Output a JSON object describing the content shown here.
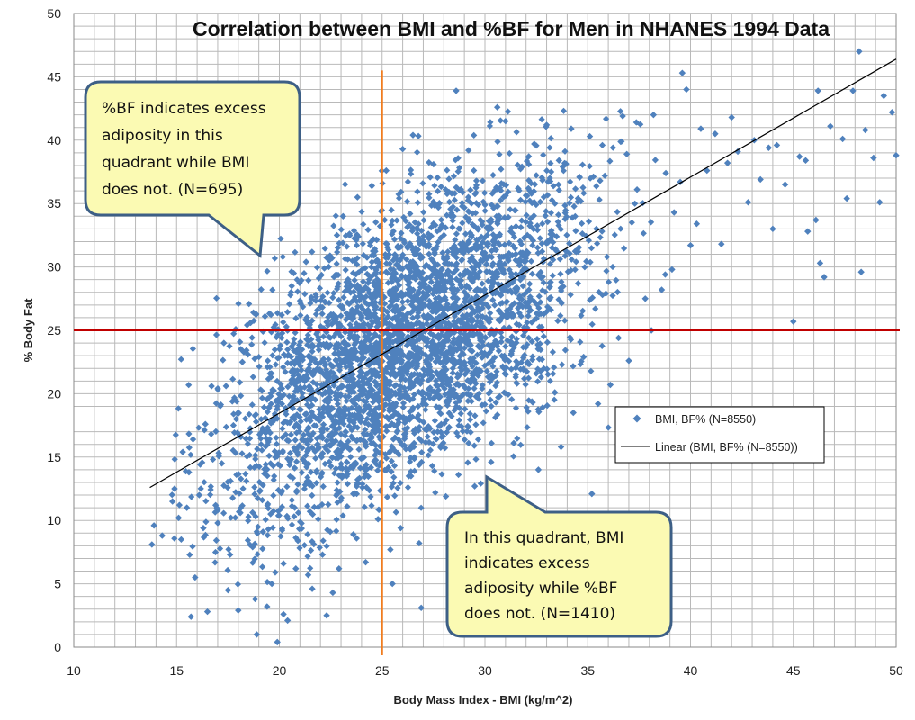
{
  "chart_data": {
    "type": "scatter",
    "title": "Correlation between BMI and %BF for Men in NHANES 1994 Data",
    "xlabel": "Body Mass Index - BMI (kg/m^2)",
    "ylabel": "% Body Fat",
    "xlim": [
      10,
      50
    ],
    "ylim": [
      0,
      50
    ],
    "x_ticks": [
      10,
      15,
      20,
      25,
      30,
      35,
      40,
      45,
      50
    ],
    "y_ticks": [
      0,
      5,
      10,
      15,
      20,
      25,
      30,
      35,
      40,
      45,
      50
    ],
    "grid": true,
    "legend_position": "right",
    "series": [
      {
        "name": "BMI, BF% (N=8550)",
        "marker": "diamond",
        "color": "#4F81BD",
        "points": [
          [
            13.8,
            8.1
          ],
          [
            13.9,
            9.6
          ],
          [
            14.3,
            8.8
          ],
          [
            14.8,
            11.5
          ],
          [
            14.9,
            12.5
          ],
          [
            15.1,
            10.2
          ],
          [
            15.3,
            15.4
          ],
          [
            15.6,
            13.8
          ],
          [
            15.7,
            2.4
          ],
          [
            15.8,
            16.4
          ],
          [
            15.9,
            5.5
          ],
          [
            16.1,
            12.0
          ],
          [
            16.4,
            17.6
          ],
          [
            16.5,
            2.8
          ],
          [
            16.7,
            20.6
          ],
          [
            17.0,
            9.8
          ],
          [
            17.2,
            14.5
          ],
          [
            17.3,
            24.0
          ],
          [
            17.5,
            4.5
          ],
          [
            17.9,
            18.0
          ],
          [
            18.0,
            2.9
          ],
          [
            18.2,
            22.5
          ],
          [
            18.6,
            25.6
          ],
          [
            18.9,
            1.0
          ],
          [
            19.3,
            26.1
          ],
          [
            19.4,
            3.2
          ],
          [
            19.9,
            0.4
          ],
          [
            20.2,
            2.6
          ],
          [
            20.4,
            2.1
          ],
          [
            20.6,
            28.5
          ],
          [
            20.8,
            6.2
          ],
          [
            21.3,
            30.4
          ],
          [
            21.6,
            4.6
          ],
          [
            22.3,
            2.5
          ],
          [
            22.6,
            4.3
          ],
          [
            22.8,
            32.5
          ],
          [
            23.1,
            34.0
          ],
          [
            23.3,
            11.1
          ],
          [
            23.8,
            35.5
          ],
          [
            24.5,
            36.4
          ],
          [
            24.8,
            10.1
          ],
          [
            25.2,
            37.6
          ],
          [
            25.5,
            5.0
          ],
          [
            26.0,
            39.3
          ],
          [
            26.5,
            40.4
          ],
          [
            26.9,
            3.1
          ],
          [
            27.5,
            38.1
          ],
          [
            28.6,
            43.9
          ],
          [
            29.2,
            39.2
          ],
          [
            31.0,
            41.5
          ],
          [
            33.0,
            41.2
          ],
          [
            34.2,
            40.9
          ],
          [
            35.1,
            40.3
          ],
          [
            36.7,
            41.9
          ],
          [
            38.2,
            42.0
          ],
          [
            39.6,
            45.3
          ],
          [
            39.8,
            44.0
          ],
          [
            40.5,
            40.9
          ],
          [
            41.2,
            40.5
          ],
          [
            42.0,
            41.8
          ],
          [
            42.3,
            39.1
          ],
          [
            43.1,
            40.0
          ],
          [
            43.8,
            39.4
          ],
          [
            44.2,
            39.6
          ],
          [
            44.6,
            36.5
          ],
          [
            45.0,
            25.7
          ],
          [
            45.3,
            38.7
          ],
          [
            45.7,
            32.8
          ],
          [
            46.2,
            43.9
          ],
          [
            46.3,
            30.3
          ],
          [
            46.5,
            29.2
          ],
          [
            46.8,
            41.1
          ],
          [
            47.4,
            40.1
          ],
          [
            47.6,
            35.4
          ],
          [
            47.9,
            43.9
          ],
          [
            48.2,
            47.0
          ],
          [
            48.3,
            29.6
          ],
          [
            48.5,
            40.8
          ],
          [
            48.9,
            38.6
          ],
          [
            49.2,
            35.1
          ],
          [
            49.4,
            43.5
          ],
          [
            49.8,
            42.2
          ],
          [
            50.0,
            38.8
          ],
          [
            44.0,
            33.0
          ],
          [
            45.6,
            38.4
          ],
          [
            46.1,
            33.7
          ],
          [
            43.4,
            36.9
          ],
          [
            42.8,
            35.1
          ],
          [
            41.5,
            31.8
          ],
          [
            40.3,
            33.4
          ],
          [
            39.5,
            36.7
          ],
          [
            38.6,
            28.2
          ],
          [
            37.8,
            27.5
          ],
          [
            36.5,
            24.4
          ],
          [
            35.2,
            12.1
          ],
          [
            34.3,
            18.5
          ],
          [
            33.7,
            15.8
          ],
          [
            32.6,
            14.0
          ],
          [
            31.4,
            16.1
          ],
          [
            30.3,
            14.6
          ],
          [
            29.5,
            12.7
          ],
          [
            28.1,
            11.9
          ],
          [
            27.7,
            17.0
          ],
          [
            26.8,
            8.2
          ],
          [
            26.3,
            13.5
          ],
          [
            25.9,
            9.4
          ],
          [
            25.4,
            7.7
          ],
          [
            24.2,
            6.7
          ],
          [
            23.6,
            8.9
          ],
          [
            22.9,
            6.2
          ],
          [
            22.1,
            7.3
          ],
          [
            21.4,
            5.7
          ],
          [
            20.9,
            8.4
          ],
          [
            20.2,
            6.6
          ],
          [
            19.8,
            5.9
          ],
          [
            19.2,
            9.1
          ],
          [
            18.7,
            7.9
          ],
          [
            18.1,
            10.6
          ],
          [
            17.6,
            7.3
          ],
          [
            16.9,
            11.2
          ],
          [
            16.3,
            9.4
          ],
          [
            15.5,
            11.0
          ],
          [
            30.6,
            42.6
          ],
          [
            31.8,
            37.9
          ],
          [
            32.4,
            39.7
          ],
          [
            33.6,
            38.4
          ],
          [
            34.6,
            37.1
          ],
          [
            35.6,
            36.8
          ],
          [
            36.9,
            38.9
          ],
          [
            37.4,
            36.1
          ],
          [
            38.8,
            37.4
          ],
          [
            39.2,
            34.3
          ],
          [
            40.8,
            37.6
          ],
          [
            41.8,
            38.2
          ],
          [
            37.0,
            22.6
          ],
          [
            38.1,
            25.0
          ],
          [
            39.1,
            29.8
          ],
          [
            40.0,
            31.7
          ],
          [
            36.1,
            20.7
          ],
          [
            35.5,
            19.2
          ],
          [
            34.8,
            22.9
          ],
          [
            33.4,
            20.1
          ],
          [
            32.1,
            18.6
          ]
        ],
        "dense_cloud_summary": "remaining ~8400 points densely distributed around the fitted line, spread roughly ±5–7 %BF"
      }
    ],
    "trendline": {
      "name": "Linear (BMI, BF% (N=8550))",
      "color": "#000000",
      "x": [
        13.7,
        50
      ],
      "y": [
        12.6,
        46.4
      ]
    },
    "reference_lines": [
      {
        "orientation": "vertical",
        "value": 25,
        "color": "#F07C1E"
      },
      {
        "orientation": "horizontal",
        "value": 25,
        "color": "#C00000"
      }
    ],
    "annotations": [
      {
        "id": "upper-left-callout",
        "lines": [
          "%BF indicates excess",
          "adiposity in this",
          "quadrant while BMI",
          "does not. (N=695)"
        ]
      },
      {
        "id": "lower-right-callout",
        "lines": [
          "In this quadrant, BMI",
          "indicates excess",
          "adiposity while %BF",
          "does not. (N=1410)"
        ]
      }
    ]
  },
  "colors": {
    "background": "#FFFFFF",
    "grid": "#B9B9B9",
    "plot_border": "#8A8A8A",
    "callout_fill": "#FBFAB3",
    "callout_stroke": "#3D5F86"
  }
}
